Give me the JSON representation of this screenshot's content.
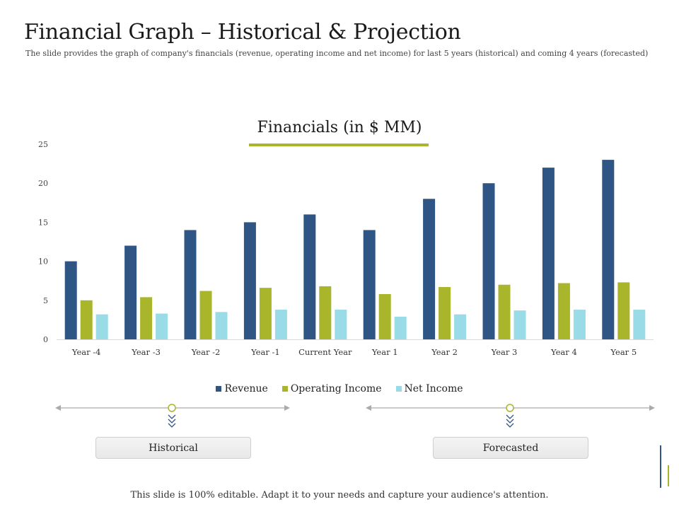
{
  "page": {
    "title": "Financial Graph – Historical & Projection",
    "subtitle": "The slide provides the graph of company's financials (revenue, operating income and net income) for last 5 years (historical) and coming 4 years (forecasted)",
    "footer": "This slide is 100% editable. Adapt it to your needs and capture your audience's attention."
  },
  "periods": {
    "historical_label": "Historical",
    "forecasted_label": "Forecasted"
  },
  "colors": {
    "revenue": "#2f5585",
    "operating_income": "#a9b52b",
    "net_income": "#9adbe8",
    "accent": "#a9b52b",
    "axis": "#d9d9d9",
    "arrow": "#aaaaaa"
  },
  "chart_data": {
    "type": "bar",
    "title": "Financials (in $ MM)",
    "xlabel": "",
    "ylabel": "",
    "ylim": [
      0,
      25
    ],
    "yticks": [
      0,
      5,
      10,
      15,
      20,
      25
    ],
    "grid": false,
    "legend_position": "bottom",
    "categories": [
      "Year -4",
      "Year -3",
      "Year -2",
      "Year -1",
      "Current Year",
      "Year 1",
      "Year 2",
      "Year 3",
      "Year 4",
      "Year 5"
    ],
    "series": [
      {
        "name": "Revenue",
        "values": [
          10,
          12,
          14,
          15,
          16,
          14,
          18,
          20,
          22,
          23
        ]
      },
      {
        "name": "Operating Income",
        "values": [
          5,
          5.4,
          6.2,
          6.6,
          6.8,
          5.8,
          6.7,
          7,
          7.2,
          7.3
        ]
      },
      {
        "name": "Net Income",
        "values": [
          3.2,
          3.3,
          3.5,
          3.8,
          3.8,
          2.9,
          3.2,
          3.7,
          3.8,
          3.8
        ]
      }
    ]
  }
}
